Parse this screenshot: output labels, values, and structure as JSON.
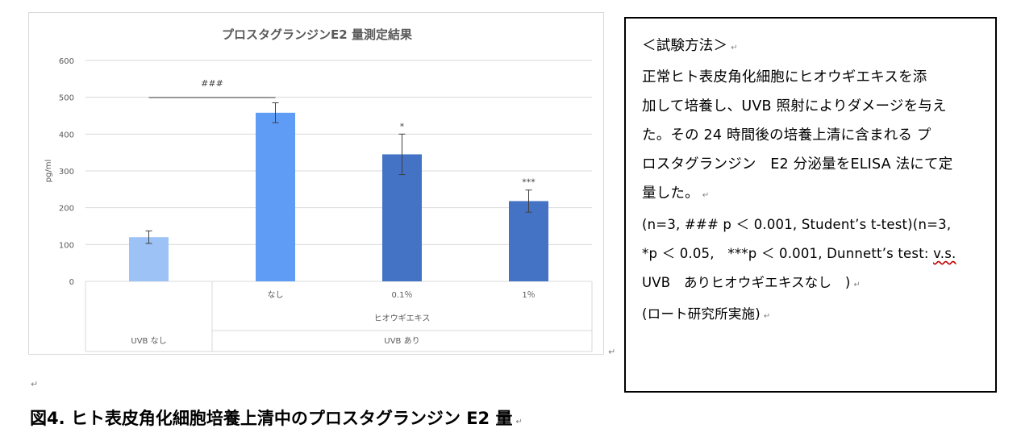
{
  "chart_data": {
    "type": "bar",
    "title": "プロスタグランジンE2 量測定結果",
    "ylabel": "pg/ml",
    "ylim": [
      0,
      600
    ],
    "yticks": [
      0,
      100,
      200,
      300,
      400,
      500,
      600
    ],
    "grid": true,
    "categories": [
      "",
      "なし",
      "0.1％",
      "1％"
    ],
    "group_label": "ヒオウギエキス",
    "uvb_groups": [
      "UVB なし",
      "UVB あり"
    ],
    "values": [
      120,
      458,
      345,
      218
    ],
    "errors": [
      17,
      27,
      55,
      30
    ],
    "colors": [
      "#9dc3f6",
      "#5e9cf5",
      "#4472c4",
      "#4472c4"
    ],
    "significance": [
      "",
      "",
      "*",
      "***"
    ],
    "bracket_label": "###"
  },
  "method": {
    "lines": [
      "＜試験方法＞",
      "正常ヒト表皮角化細胞にヒオウギエキスを添",
      "加して培養し、UVB 照射によりダメージを与え",
      "た。その 24 時間後の培養上清に含まれる プ",
      "ロスタグランジン　E2 分泌量をELISA 法にて定",
      "量した。",
      "(n=3, ### p ＜ 0.001, Student’s t-test)(n=3,",
      "*p ＜ 0.05,　***p ＜ 0.001, Dunnett’s test: ",
      "UVB　ありヒオウギエキスなし　)",
      "(ロート研究所実施)"
    ],
    "vs_text": "v.s."
  },
  "caption": "図4. ヒト表皮角化細胞培養上清中のプロスタグランジン E2 量",
  "para_mark": "↵"
}
